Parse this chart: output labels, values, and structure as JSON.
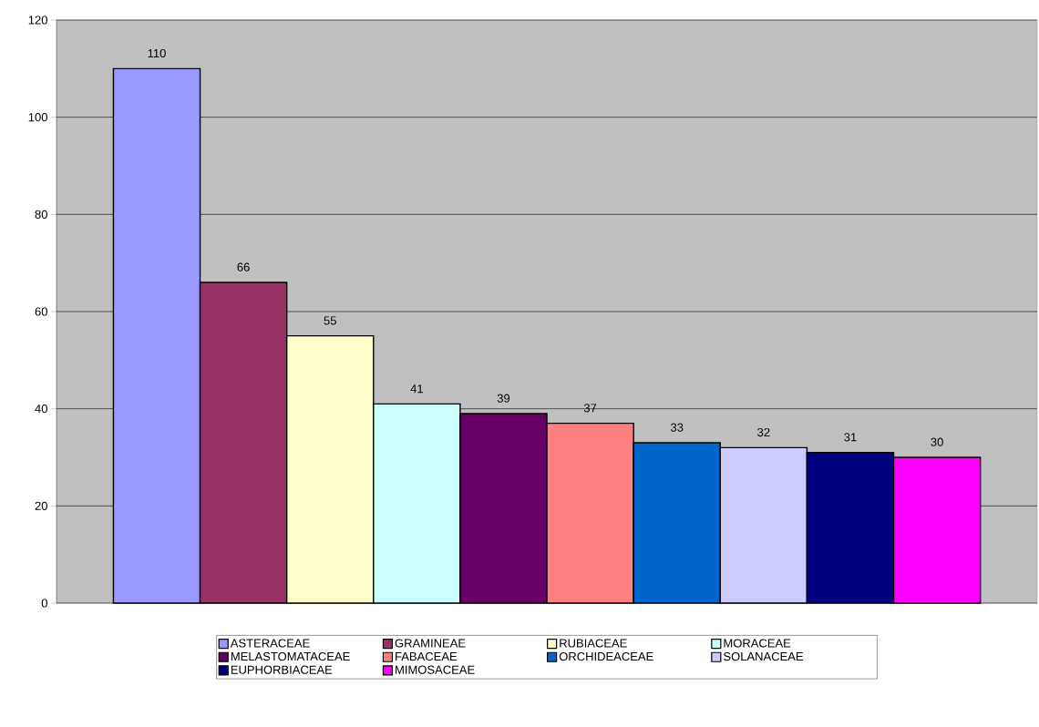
{
  "chart_data": {
    "type": "bar",
    "categories": [
      null
    ],
    "series": [
      {
        "name": "ASTERACEAE",
        "color": "#9999ff",
        "values": [
          110
        ]
      },
      {
        "name": "GRAMINEAE",
        "color": "#993366",
        "values": [
          66
        ]
      },
      {
        "name": "RUBIACEAE",
        "color": "#ffffcc",
        "values": [
          55
        ]
      },
      {
        "name": "MORACEAE",
        "color": "#ccffff",
        "values": [
          41
        ]
      },
      {
        "name": "MELASTOMATACEAE",
        "color": "#660066",
        "values": [
          39
        ]
      },
      {
        "name": "FABACEAE",
        "color": "#ff8080",
        "values": [
          37
        ]
      },
      {
        "name": "ORCHIDEACEAE",
        "color": "#0066cc",
        "values": [
          33
        ]
      },
      {
        "name": "SOLANACEAE",
        "color": "#ccccff",
        "values": [
          32
        ]
      },
      {
        "name": "EUPHORBIACEAE",
        "color": "#000080",
        "values": [
          31
        ]
      },
      {
        "name": "MIMOSACEAE",
        "color": "#ff00ff",
        "values": [
          30
        ]
      }
    ],
    "ylim": [
      0,
      120
    ],
    "yticks": [
      0,
      20,
      40,
      60,
      80,
      100,
      120
    ],
    "grid": "y",
    "legend": "bottom",
    "data_labels": true
  }
}
